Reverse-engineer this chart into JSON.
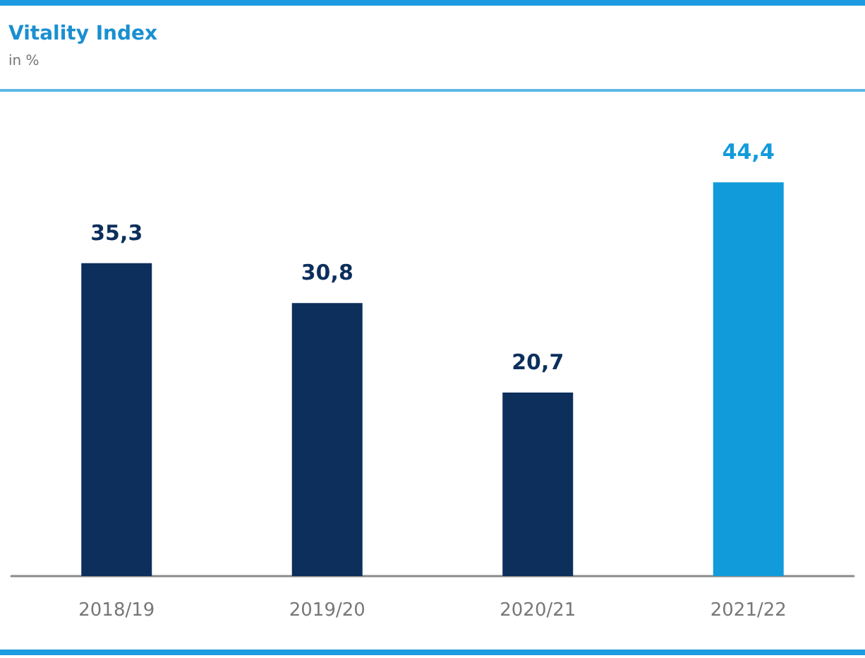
{
  "chart_data": {
    "type": "bar",
    "title": "Vitality Index",
    "subtitle": "in %",
    "categories": [
      "2018/19",
      "2019/20",
      "2020/21",
      "2021/22"
    ],
    "values": [
      35.3,
      30.8,
      20.7,
      44.4
    ],
    "colors": [
      "#0c2f5c",
      "#0c2f5c",
      "#0c2f5c",
      "#129bdb"
    ],
    "value_labels": [
      "35,3",
      "30,8",
      "20,7",
      "44,4"
    ]
  }
}
